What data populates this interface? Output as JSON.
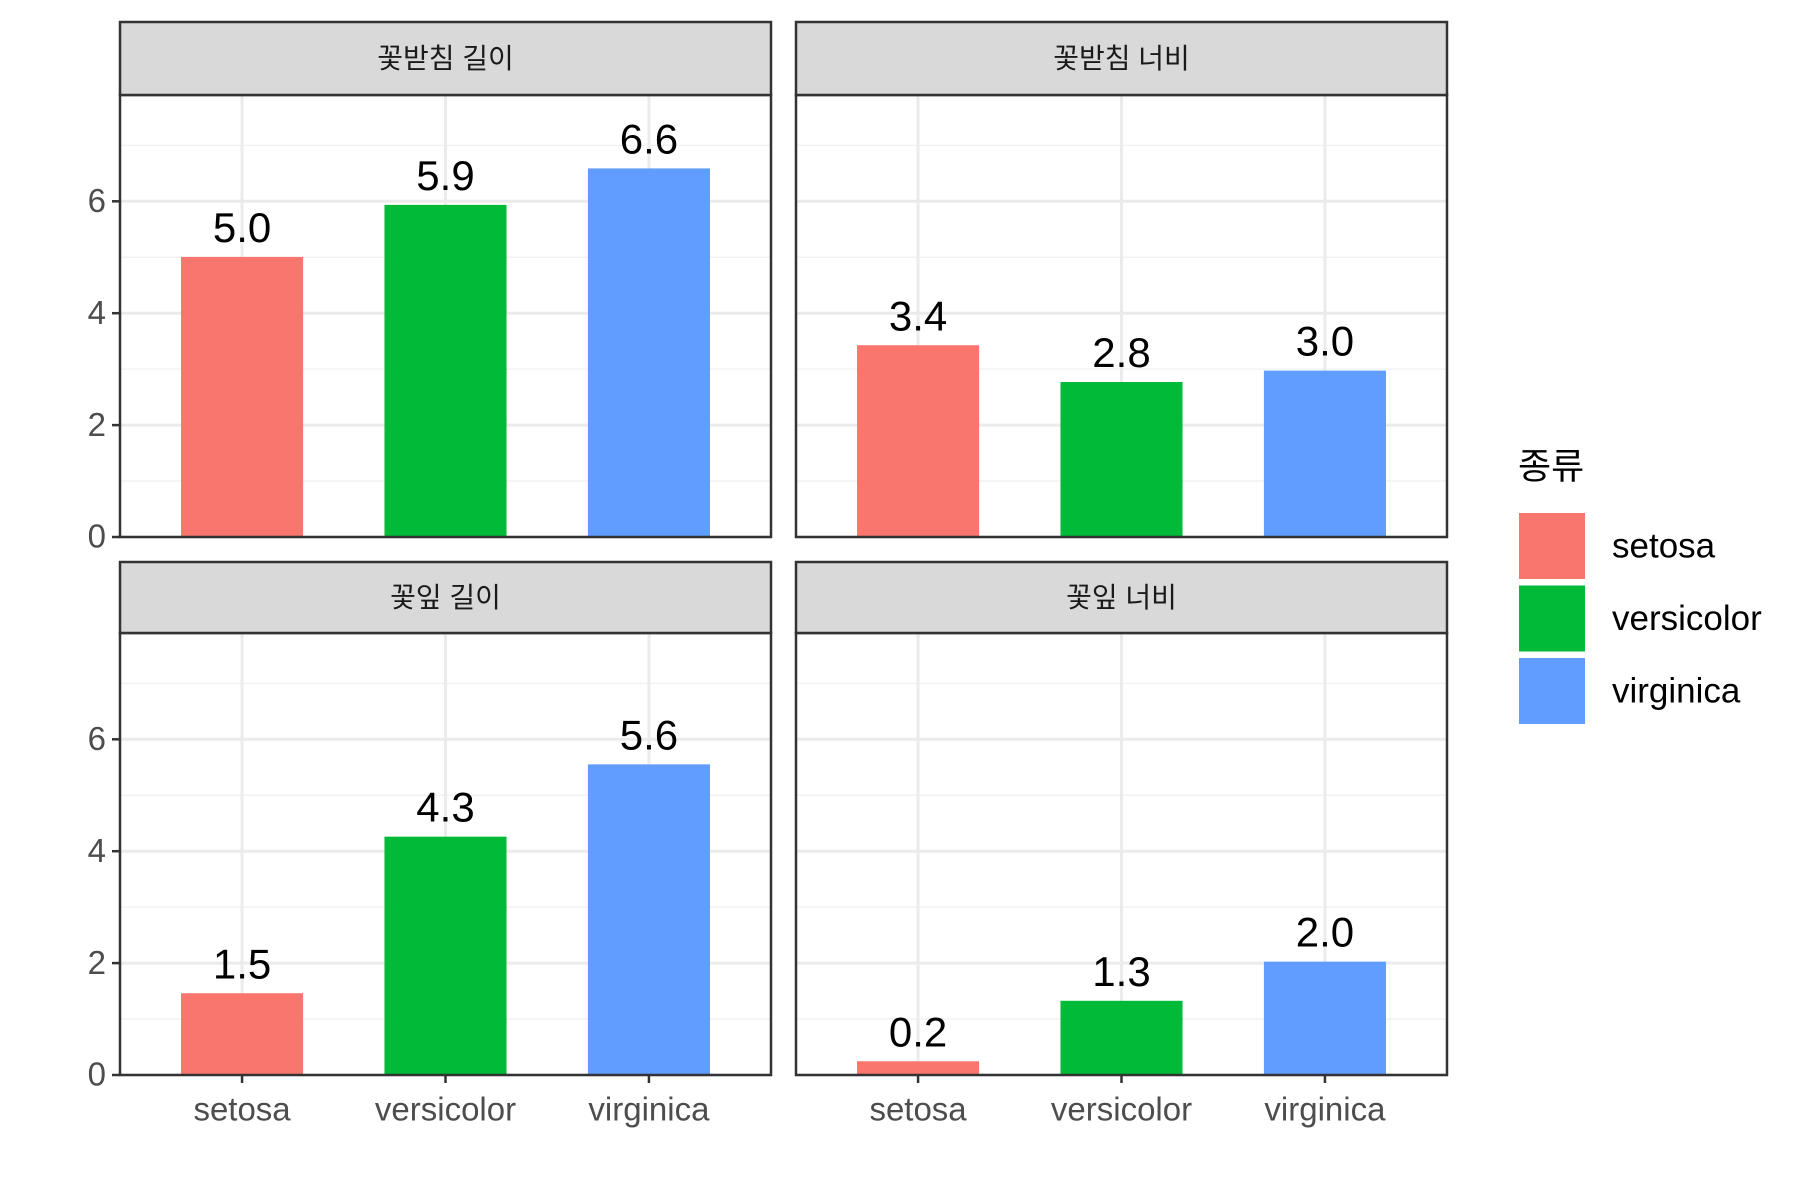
{
  "chart_data": [
    {
      "type": "bar",
      "title": "꽃받침 길이",
      "categories": [
        "setosa",
        "versicolor",
        "virginica"
      ],
      "values": [
        5.006,
        5.936,
        6.588
      ],
      "value_labels": [
        "5.0",
        "5.9",
        "6.6"
      ],
      "colors": [
        "#F8766D",
        "#00BA38",
        "#619CFF"
      ],
      "ylim": [
        0,
        7.9
      ],
      "yticks": [
        0,
        2,
        4,
        6
      ],
      "minor_yticks": [
        1,
        3,
        5,
        7
      ],
      "grid": true
    },
    {
      "type": "bar",
      "title": "꽃받침 너비",
      "categories": [
        "setosa",
        "versicolor",
        "virginica"
      ],
      "values": [
        3.428,
        2.77,
        2.974
      ],
      "value_labels": [
        "3.4",
        "2.8",
        "3.0"
      ],
      "colors": [
        "#F8766D",
        "#00BA38",
        "#619CFF"
      ],
      "ylim": [
        0,
        7.9
      ],
      "yticks": [
        0,
        2,
        4,
        6
      ],
      "minor_yticks": [
        1,
        3,
        5,
        7
      ],
      "grid": true
    },
    {
      "type": "bar",
      "title": "꽃잎 길이",
      "categories": [
        "setosa",
        "versicolor",
        "virginica"
      ],
      "values": [
        1.462,
        4.26,
        5.552
      ],
      "value_labels": [
        "1.5",
        "4.3",
        "5.6"
      ],
      "colors": [
        "#F8766D",
        "#00BA38",
        "#619CFF"
      ],
      "ylim": [
        0,
        7.9
      ],
      "yticks": [
        0,
        2,
        4,
        6
      ],
      "minor_yticks": [
        1,
        3,
        5,
        7
      ],
      "grid": true
    },
    {
      "type": "bar",
      "title": "꽃잎 너비",
      "categories": [
        "setosa",
        "versicolor",
        "virginica"
      ],
      "values": [
        0.246,
        1.326,
        2.026
      ],
      "value_labels": [
        "0.2",
        "1.3",
        "2.0"
      ],
      "colors": [
        "#F8766D",
        "#00BA38",
        "#619CFF"
      ],
      "ylim": [
        0,
        7.9
      ],
      "yticks": [
        0,
        2,
        4,
        6
      ],
      "minor_yticks": [
        1,
        3,
        5,
        7
      ],
      "grid": true
    }
  ],
  "legend": {
    "title": "종류",
    "entries": [
      {
        "name": "setosa",
        "color": "#F8766D"
      },
      {
        "name": "versicolor",
        "color": "#00BA38"
      },
      {
        "name": "virginica",
        "color": "#619CFF"
      }
    ]
  }
}
